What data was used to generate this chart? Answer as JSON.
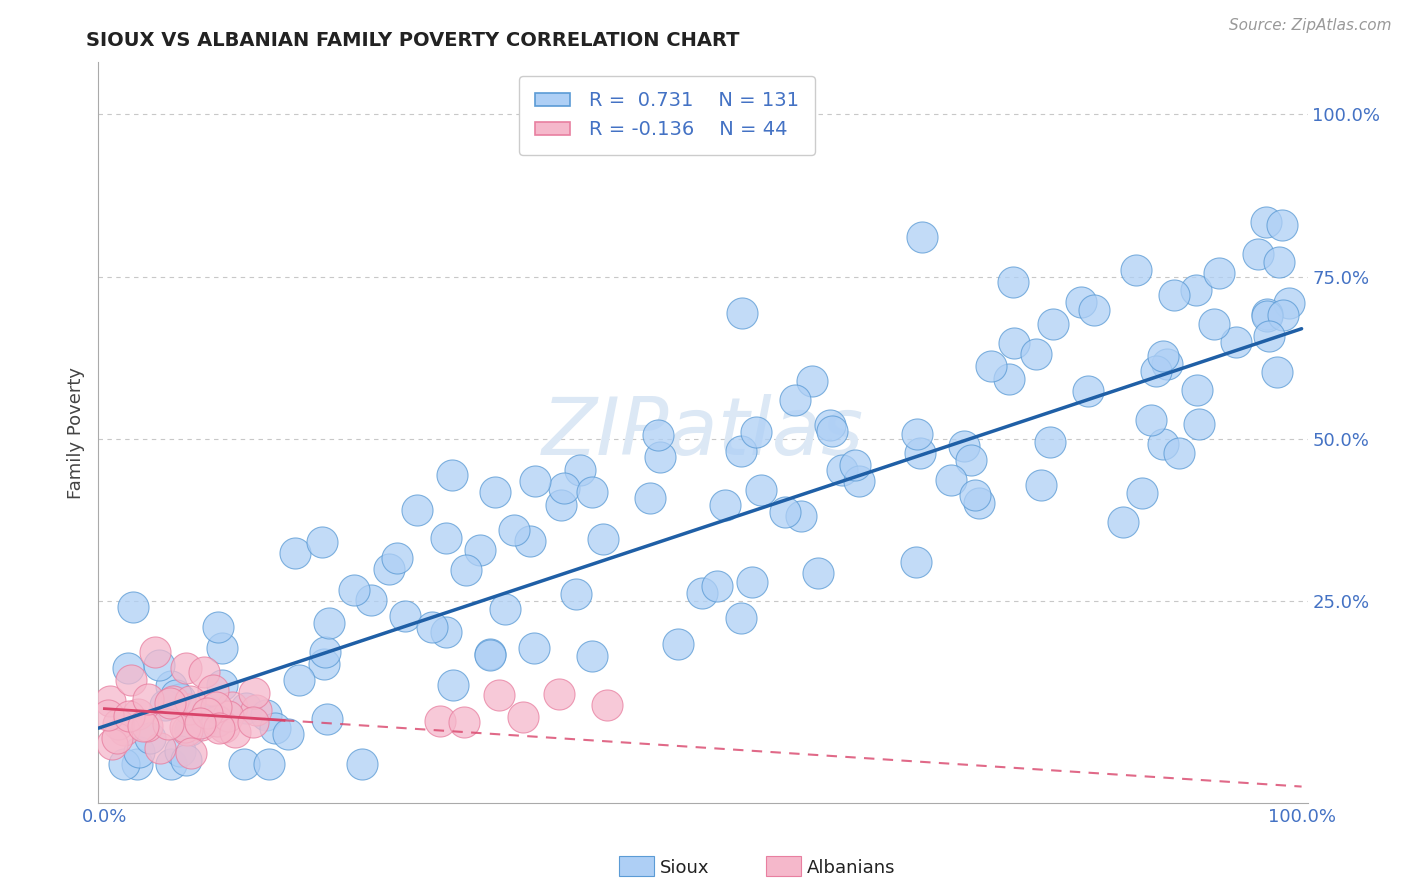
{
  "title": "SIOUX VS ALBANIAN FAMILY POVERTY CORRELATION CHART",
  "source_text": "Source: ZipAtlas.com",
  "ylabel": "Family Poverty",
  "sioux_R": 0.731,
  "sioux_N": 131,
  "albanian_R": -0.136,
  "albanian_N": 44,
  "sioux_color": "#aecff5",
  "sioux_edge_color": "#5b9bd5",
  "sioux_line_color": "#1f5fa6",
  "albanian_color": "#f5b8cb",
  "albanian_edge_color": "#e87fa0",
  "albanian_line_color": "#d9446a",
  "watermark_color": "#dce8f5",
  "grid_color": "#c8c8c8",
  "tick_color": "#4472c4",
  "title_color": "#222222",
  "ylabel_color": "#444444",
  "source_color": "#999999"
}
